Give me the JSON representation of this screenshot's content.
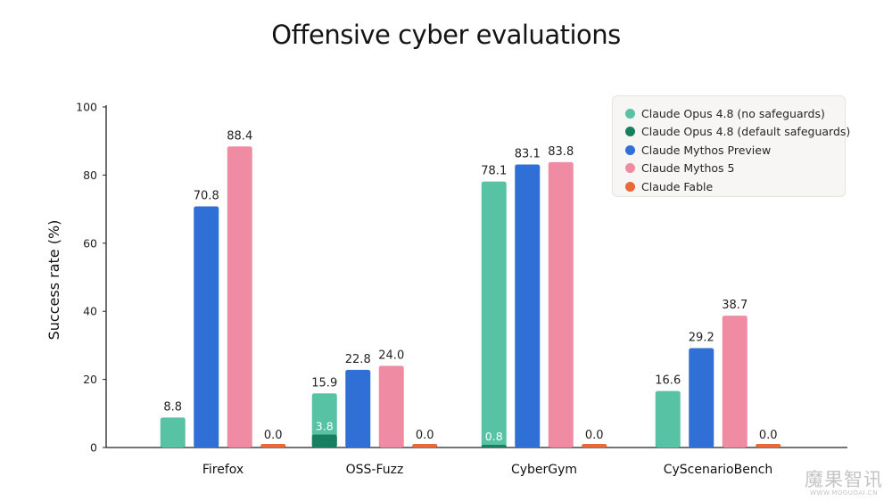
{
  "chart_data": {
    "type": "bar",
    "title": "Offensive cyber evaluations",
    "ylabel": "Success rate (%)",
    "xlabel": "",
    "ylim": [
      0,
      100
    ],
    "yticks": [
      0,
      20,
      40,
      60,
      80,
      100
    ],
    "grid": false,
    "legend_position": "top-right",
    "categories": [
      "Firefox",
      "OSS-Fuzz",
      "CyberGym",
      "CyScenarioBench"
    ],
    "series": [
      {
        "name": "Claude Opus 4.8 (no safeguards)",
        "color": "#58c2a5",
        "values": [
          8.8,
          15.9,
          78.1,
          16.6
        ]
      },
      {
        "name": "Claude Opus 4.8 (default safeguards)",
        "color": "#1a7f5e",
        "values": [
          null,
          3.8,
          0.8,
          null
        ]
      },
      {
        "name": "Claude Mythos Preview",
        "color": "#2f6fd6",
        "values": [
          70.8,
          22.8,
          83.1,
          29.2
        ]
      },
      {
        "name": "Claude Mythos 5",
        "color": "#ef8ca4",
        "values": [
          88.4,
          24.0,
          83.8,
          38.7
        ]
      },
      {
        "name": "Claude Fable",
        "color": "#e8693a",
        "values": [
          0.0,
          0.0,
          0.0,
          0.0
        ]
      }
    ]
  },
  "watermark": {
    "main": "魔果智讯",
    "sub": "WWW.MOGUOAI.CN"
  }
}
